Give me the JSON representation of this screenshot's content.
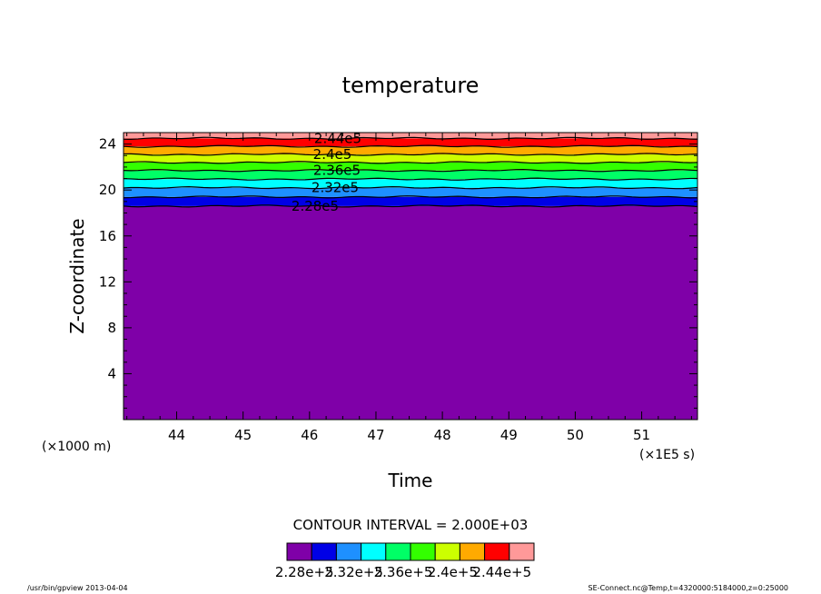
{
  "chart_data": {
    "type": "contour",
    "title": "temperature",
    "xlabel": "Time",
    "ylabel": "Z-coordinate",
    "x_unit": "(×1E5 s)",
    "y_unit": "(×1000 m)",
    "xlim": [
      43.2,
      51.84
    ],
    "ylim": [
      0,
      25
    ],
    "x_ticks": [
      44,
      45,
      46,
      47,
      48,
      49,
      50,
      51
    ],
    "y_ticks": [
      4,
      8,
      12,
      16,
      20,
      24
    ],
    "contour_interval_text": "CONTOUR INTERVAL = 2.000E+03",
    "levels": [
      {
        "value": 228000,
        "z": 18.6,
        "label": "2.28e5",
        "color": "#7f00a8"
      },
      {
        "value": 230000,
        "z": 19.4,
        "color": "#0000e6"
      },
      {
        "value": 232000,
        "z": 20.2,
        "label": "2.32e5",
        "color": "#1e90ff"
      },
      {
        "value": 234000,
        "z": 20.95,
        "color": "#00ffff"
      },
      {
        "value": 236000,
        "z": 21.7,
        "label": "2.36e5",
        "color": "#00ff66"
      },
      {
        "value": 238000,
        "z": 22.4,
        "color": "#33ff00"
      },
      {
        "value": 240000,
        "z": 23.1,
        "label": "2.4e5",
        "color": "#ccff00"
      },
      {
        "value": 242000,
        "z": 23.8,
        "color": "#ffaa00"
      },
      {
        "value": 244000,
        "z": 24.5,
        "label": "2.44e5",
        "color": "#ff0000"
      }
    ],
    "colors": [
      "#7f00a8",
      "#0000e6",
      "#1e90ff",
      "#00ffff",
      "#00ff66",
      "#33ff00",
      "#ccff00",
      "#ffaa00",
      "#ff0000",
      "#ff9999"
    ],
    "colorbar_labels": [
      "2.28e+5",
      "2.32e+5",
      "2.36e+5",
      "2.4e+5",
      "2.44e+5"
    ]
  },
  "footer": {
    "left": "/usr/bin/gpview   2013-04-04",
    "right": "SE-Connect.nc@Temp,t=4320000:5184000,z=0:25000"
  }
}
